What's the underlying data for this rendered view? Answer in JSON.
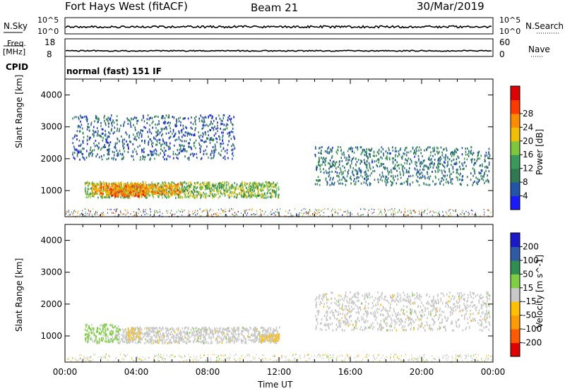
{
  "header": {
    "station": "Fort Hays West (fitACF)",
    "beam": "Beam 21",
    "date": "30/Mar/2019"
  },
  "top_panels": {
    "nsky_label": "N.Sky",
    "nsky_ticks": [
      "10^5",
      "10^0"
    ],
    "nsearch_label": "N.Search",
    "nsearch_ticks": [
      "10^5",
      "10^0"
    ],
    "freq_label": "Freq.",
    "freq_unit": "[MHz]",
    "freq_ticks": [
      "18",
      "8"
    ],
    "nave_label": "Nave",
    "nave_ticks": [
      "60",
      "0"
    ],
    "cpid_label": "CPID",
    "cpid_text": "normal (fast) 151 IF"
  },
  "colors": {
    "power": [
      "#1a1aff",
      "#2255aa",
      "#2f7a52",
      "#3a9a5a",
      "#7ec73c",
      "#f0c000",
      "#ff8c00",
      "#ff3a00",
      "#e00000"
    ],
    "velocity": [
      "#e00000",
      "#ff5a00",
      "#ff9a00",
      "#ffc000",
      "#c8c8c8",
      "#7ed040",
      "#2f8f4e",
      "#2f5aa8",
      "#1a1acc"
    ]
  },
  "chart_data": [
    {
      "type": "heatmap",
      "name": "power",
      "ylabel": "Slant Range [km]",
      "yticks": [
        "1000",
        "2000",
        "3000",
        "4000"
      ],
      "ylim": [
        180,
        4500
      ],
      "xlim": [
        0,
        24
      ],
      "colorbar_label": "Power [dB]",
      "colorbar_ticks": [
        "4",
        "8",
        "12",
        "16",
        "20",
        "24",
        "28"
      ],
      "clim": [
        0,
        30
      ],
      "regions": [
        {
          "t0": 1.1,
          "t1": 12.0,
          "r0": 800,
          "r1": 1300,
          "level": 14
        },
        {
          "t0": 2.5,
          "t1": 4.5,
          "r0": 850,
          "r1": 1200,
          "level": 26
        },
        {
          "t0": 1.5,
          "t1": 6.5,
          "r0": 900,
          "r1": 1250,
          "level": 20
        },
        {
          "t0": 14.0,
          "t1": 23.8,
          "r0": 1200,
          "r1": 2400,
          "level": 8
        },
        {
          "t0": 0.4,
          "t1": 9.5,
          "r0": 2000,
          "r1": 3400,
          "level": 6
        }
      ]
    },
    {
      "type": "heatmap",
      "name": "velocity",
      "ylabel": "Slant Range [km]",
      "yticks": [
        "1000",
        "2000",
        "3000",
        "4000"
      ],
      "ylim": [
        180,
        4500
      ],
      "xlim": [
        0,
        24
      ],
      "xticks": [
        "00:00",
        "04:00",
        "08:00",
        "12:00",
        "16:00",
        "20:00",
        "00:00"
      ],
      "xlabel": "Time UT",
      "colorbar_label": "Velocity [m s^-1]",
      "colorbar_ticks": [
        "-200",
        "-100",
        "-50",
        "-15",
        "15",
        "50",
        "100",
        "200"
      ],
      "clim": [
        -250,
        250
      ],
      "regions": [
        {
          "t0": 1.1,
          "t1": 3.0,
          "r0": 800,
          "r1": 1400,
          "level": 40
        },
        {
          "t0": 3.0,
          "t1": 12.0,
          "r0": 800,
          "r1": 1300,
          "level": 0
        },
        {
          "t0": 3.5,
          "t1": 4.2,
          "r0": 900,
          "r1": 1300,
          "level": -30
        },
        {
          "t0": 11.0,
          "t1": 12.0,
          "r0": 850,
          "r1": 1100,
          "level": -30
        },
        {
          "t0": 14.0,
          "t1": 23.8,
          "r0": 1200,
          "r1": 2400,
          "level": 0
        }
      ]
    }
  ]
}
